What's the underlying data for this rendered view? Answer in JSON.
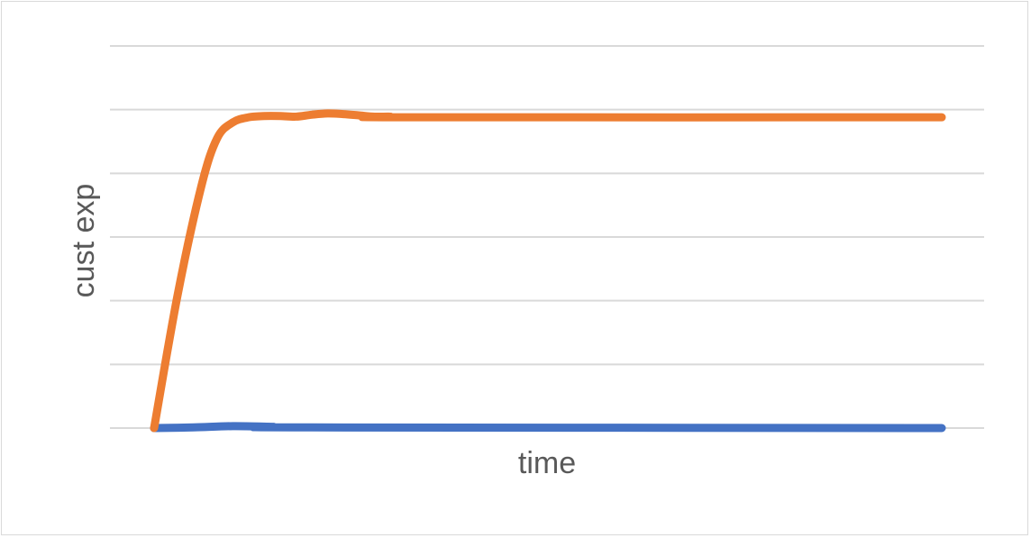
{
  "chart_data": {
    "type": "line",
    "title": "",
    "xlabel": "time",
    "ylabel": "cust exp",
    "xlim": [
      0,
      100
    ],
    "ylim": [
      0,
      6
    ],
    "y_gridlines": [
      0,
      1,
      2,
      3,
      4,
      5,
      6
    ],
    "grid": true,
    "legend": "none",
    "series": [
      {
        "color": "#4472C4",
        "x": [
          0,
          5,
          10,
          15,
          20,
          100
        ],
        "y": [
          0,
          0.01,
          0.03,
          0.02,
          0.01,
          0
        ]
      },
      {
        "color": "#ED7D31",
        "x": [
          0,
          3,
          6,
          8,
          10,
          12,
          14,
          16,
          18,
          20,
          22,
          24,
          26,
          28,
          30,
          32,
          100
        ],
        "y": [
          0,
          2.1,
          3.8,
          4.55,
          4.8,
          4.88,
          4.9,
          4.9,
          4.89,
          4.92,
          4.94,
          4.93,
          4.91,
          4.89,
          4.89,
          4.88,
          4.88
        ]
      }
    ]
  }
}
